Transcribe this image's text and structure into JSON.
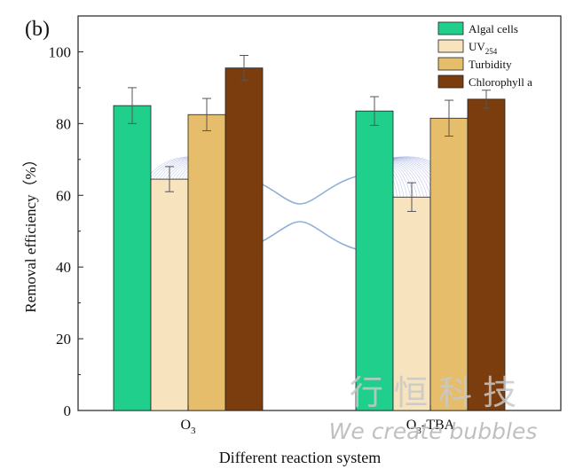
{
  "chart_data": {
    "type": "bar",
    "panel_label": "(b)",
    "categories": [
      "O3",
      "O3-TBA"
    ],
    "category_display": [
      {
        "main": "O",
        "sub": "3",
        "suffix": ""
      },
      {
        "main": "O",
        "sub": "3",
        "suffix": "-TBA"
      }
    ],
    "xlabel": "Different reaction system",
    "ylabel": "Removal efficiency（%）",
    "ylim": [
      0,
      110
    ],
    "yticks": [
      0,
      20,
      40,
      60,
      80,
      100
    ],
    "series": [
      {
        "name": "Algal cells",
        "label_main": "Algal cells",
        "label_sub": "",
        "color": "#1fcf8b",
        "values": [
          85.0,
          83.5
        ],
        "errors": [
          5.0,
          4.0
        ]
      },
      {
        "name": "UV254",
        "label_main": "UV",
        "label_sub": "254",
        "color": "#f7e3bd",
        "values": [
          64.5,
          59.5
        ],
        "errors": [
          3.5,
          4.0
        ]
      },
      {
        "name": "Turbidity",
        "label_main": "Turbidity",
        "label_sub": "",
        "color": "#e6bd6b",
        "values": [
          82.5,
          81.5
        ],
        "errors": [
          4.5,
          5.0
        ]
      },
      {
        "name": "Chlorophyll a",
        "label_main": "Chlorophyll a",
        "label_sub": "",
        "color": "#7b3d0e",
        "values": [
          95.5,
          86.8
        ],
        "errors": [
          3.5,
          2.5
        ]
      }
    ],
    "legend_position": "top-right"
  },
  "watermark": {
    "chinese": "行 恒 科 技",
    "english": "We create bubbles"
  }
}
